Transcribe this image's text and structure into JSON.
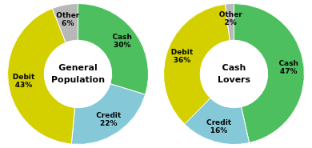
{
  "chart_data": [
    {
      "type": "doughnut",
      "title": "General\nPopulation",
      "categories": [
        "Cash",
        "Credit",
        "Debit",
        "Other"
      ],
      "values": [
        30,
        22,
        43,
        6
      ],
      "value_labels": [
        "30%",
        "22%",
        "43%",
        "6%"
      ],
      "colors": [
        "#4dbf5e",
        "#85c8d8",
        "#d4d000",
        "#b8b8b8"
      ],
      "data_labels": true
    },
    {
      "type": "doughnut",
      "title": "Cash\nLovers",
      "categories": [
        "Cash",
        "Credit",
        "Debit",
        "Other"
      ],
      "values": [
        47,
        16,
        36,
        2
      ],
      "value_labels": [
        "47%",
        "16%",
        "36%",
        "2%"
      ],
      "colors": [
        "#4dbf5e",
        "#85c8d8",
        "#d4d000",
        "#b8b8b8"
      ],
      "data_labels": true
    }
  ]
}
